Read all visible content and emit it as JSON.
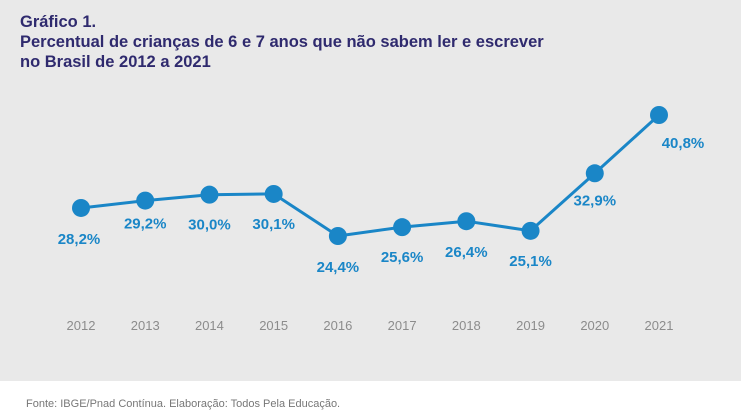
{
  "header": {
    "figure_label": "Gráfico 1.",
    "title_line1": "Percentual de crianças de 6 e 7 anos que não sabem ler e escrever",
    "title_line2": "no Brasil de 2012 a 2021"
  },
  "footer": {
    "source": "Fonte: IBGE/Pnad Contínua. Elaboração: Todos Pela Educação."
  },
  "colors": {
    "title": "#2f2a6e",
    "series": "#1a86c7",
    "label": "#1a86c7",
    "tick": "#8c8c8c",
    "panel_bg": "#e9e9e9"
  },
  "chart_data": {
    "type": "line",
    "title": "Gráfico 1. Percentual de crianças de 6 e 7 anos que não sabem ler e escrever no Brasil de 2012 a 2021",
    "xlabel": "",
    "ylabel": "",
    "categories": [
      "2012",
      "2013",
      "2014",
      "2015",
      "2016",
      "2017",
      "2018",
      "2019",
      "2020",
      "2021"
    ],
    "series": [
      {
        "name": "Crianças de 6 e 7 anos que não sabem ler e escrever (%)",
        "values": [
          28.2,
          29.2,
          30.0,
          30.1,
          24.4,
          25.6,
          26.4,
          25.1,
          32.9,
          40.8
        ]
      }
    ],
    "data_labels": [
      "28,2%",
      "29,2%",
      "30,0%",
      "30,1%",
      "24,4%",
      "25,6%",
      "26,4%",
      "25,1%",
      "32,9%",
      "40,8%"
    ],
    "label_position": [
      "below",
      "below",
      "below",
      "below",
      "below",
      "below",
      "below",
      "below",
      "below",
      "below"
    ],
    "y_axis_visible": false,
    "grid": false,
    "legend": "none",
    "source": "Fonte: IBGE/Pnad Contínua. Elaboração: Todos Pela Educação."
  }
}
